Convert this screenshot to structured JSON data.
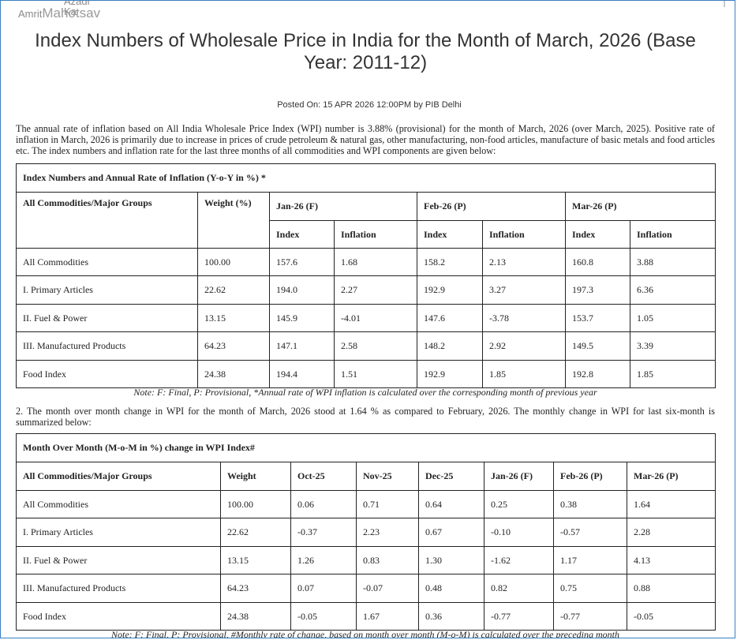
{
  "header": {
    "logo_top": "Azadi Ka",
    "logo_amrit": "Amrit",
    "logo_mahotsav": "Mahotsav"
  },
  "title": "Index Numbers of Wholesale Price in India for the Month of March, 2026 (Base Year: 2011-12)",
  "posted_on": "Posted On: 15 APR 2026 12:00PM by PIB Delhi",
  "paragraph1": "The annual rate of inflation based on All India Wholesale Price Index (WPI) number is 3.88% (provisional) for the month of March, 2026 (over March, 2025). Positive rate of inflation in March, 2026 is primarily due to increase in prices of crude petroleum & natural gas, other manufacturing, non-food articles, manufacture of basic metals and food articles etc. The index numbers and inflation rate for the last three months of all commodities and WPI components are given below:",
  "table1": {
    "caption": "Index Numbers and Annual Rate of Inflation (Y-o-Y in %) *",
    "col_group": "All Commodities/Major Groups",
    "col_weight": "Weight (%)",
    "months": [
      "Jan-26 (F)",
      "Feb-26 (P)",
      "Mar-26 (P)"
    ],
    "sub_index": "Index",
    "sub_inflation": "Inflation",
    "rows": [
      {
        "group": "All Commodities",
        "weight": "100.00",
        "values": [
          "157.6",
          "1.68",
          "158.2",
          "2.13",
          "160.8",
          "3.88"
        ]
      },
      {
        "group": "I. Primary Articles",
        "weight": "22.62",
        "values": [
          "194.0",
          "2.27",
          "192.9",
          "3.27",
          "197.3",
          "6.36"
        ]
      },
      {
        "group": "II. Fuel & Power",
        "weight": "13.15",
        "values": [
          "145.9",
          "-4.01",
          "147.6",
          "-3.78",
          "153.7",
          "1.05"
        ]
      },
      {
        "group": "III. Manufactured Products",
        "weight": "64.23",
        "values": [
          "147.1",
          "2.58",
          "148.2",
          "2.92",
          "149.5",
          "3.39"
        ]
      },
      {
        "group": "Food Index",
        "weight": "24.38",
        "values": [
          "194.4",
          "1.51",
          "192.9",
          "1.85",
          "192.8",
          "1.85"
        ]
      }
    ]
  },
  "note1": "Note: F: Final, P: Provisional, *Annual rate of WPI inflation is calculated over the corresponding month of previous year",
  "paragraph2": "2. The month over month change in WPI for the month of March, 2026 stood at 1.64 % as compared to February, 2026. The monthly change in WPI for last six-month is summarized below:",
  "table2": {
    "caption": "Month Over Month (M-o-M in %) change in WPI Index#",
    "col_group": "All Commodities/Major Groups",
    "col_weight": "Weight",
    "months": [
      "Oct-25",
      "Nov-25",
      "Dec-25",
      "Jan-26 (F)",
      "Feb-26 (P)",
      "Mar-26 (P)"
    ],
    "rows": [
      {
        "group": "All Commodities",
        "weight": "100.00",
        "values": [
          "0.06",
          "0.71",
          "0.64",
          "0.25",
          "0.38",
          "1.64"
        ]
      },
      {
        "group": "I. Primary Articles",
        "weight": "22.62",
        "values": [
          "-0.37",
          "2.23",
          "0.67",
          "-0.10",
          "-0.57",
          "2.28"
        ]
      },
      {
        "group": "II. Fuel & Power",
        "weight": "13.15",
        "values": [
          "1.26",
          "0.83",
          "1.30",
          "-1.62",
          "1.17",
          "4.13"
        ]
      },
      {
        "group": "III. Manufactured Products",
        "weight": "64.23",
        "values": [
          "0.07",
          "-0.07",
          "0.48",
          "0.82",
          "0.75",
          "0.88"
        ]
      },
      {
        "group": "Food Index",
        "weight": "24.38",
        "values": [
          "-0.05",
          "1.67",
          "0.36",
          "-0.77",
          "-0.77",
          "-0.05"
        ]
      }
    ]
  },
  "note2": "Note: F: Final, P: Provisional, #Monthly rate of change, based on month over month (M-o-M) is calculated over the preceding month"
}
